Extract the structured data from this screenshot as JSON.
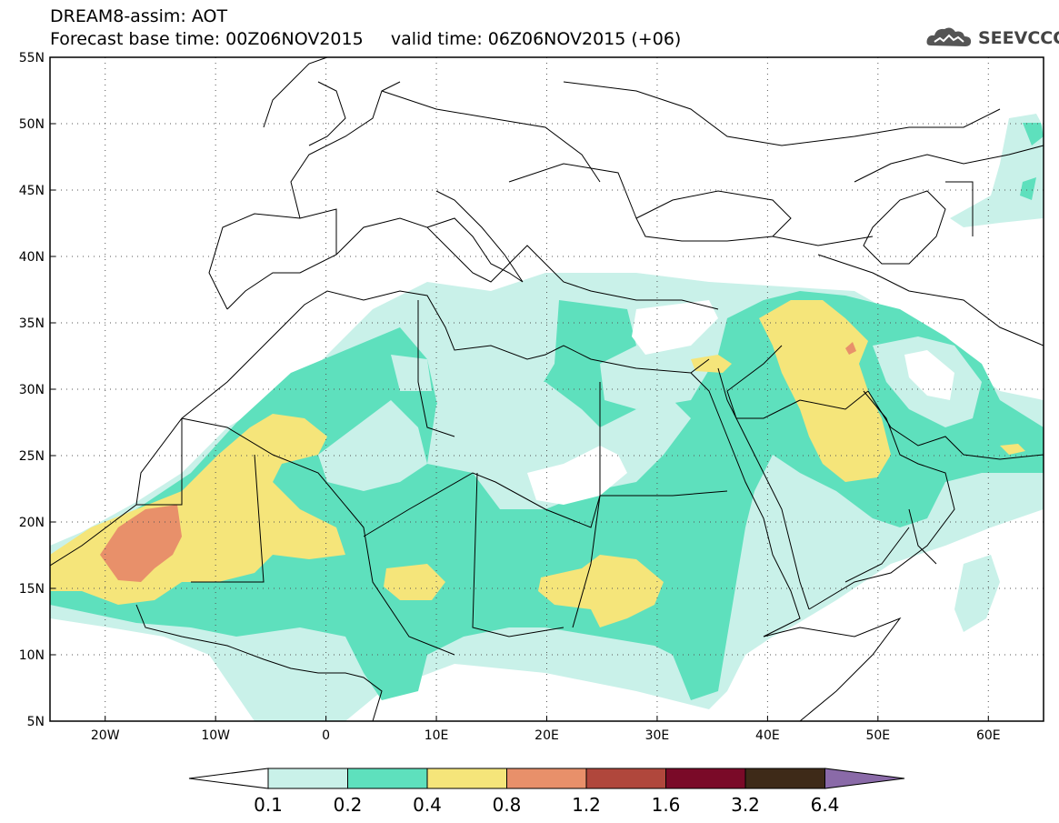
{
  "header": {
    "line1": "DREAM8-assim: AOT",
    "line2": "Forecast base time: 00Z06NOV2015     valid time: 06Z06NOV2015 (+06)",
    "logo_text": "SEEVCCC"
  },
  "map": {
    "lon_range": [
      -25,
      65
    ],
    "lat_range": [
      5,
      55
    ],
    "lat_ticks": [
      "5N",
      "10N",
      "15N",
      "20N",
      "25N",
      "30N",
      "35N",
      "40N",
      "45N",
      "50N",
      "55N"
    ],
    "lon_ticks": [
      "20W",
      "10W",
      "0",
      "10E",
      "20E",
      "30E",
      "40E",
      "50E",
      "60E"
    ],
    "gridlines": "dotted"
  },
  "colorbar": {
    "levels": [
      "0.1",
      "0.2",
      "0.4",
      "0.8",
      "1.2",
      "1.6",
      "3.2",
      "6.4"
    ],
    "colors": [
      "#ffffff",
      "#c9f1e9",
      "#5ee0bd",
      "#f5e57a",
      "#e8906a",
      "#b0473c",
      "#7a0a28",
      "#3e2a18",
      "#8a6aa8"
    ]
  }
}
